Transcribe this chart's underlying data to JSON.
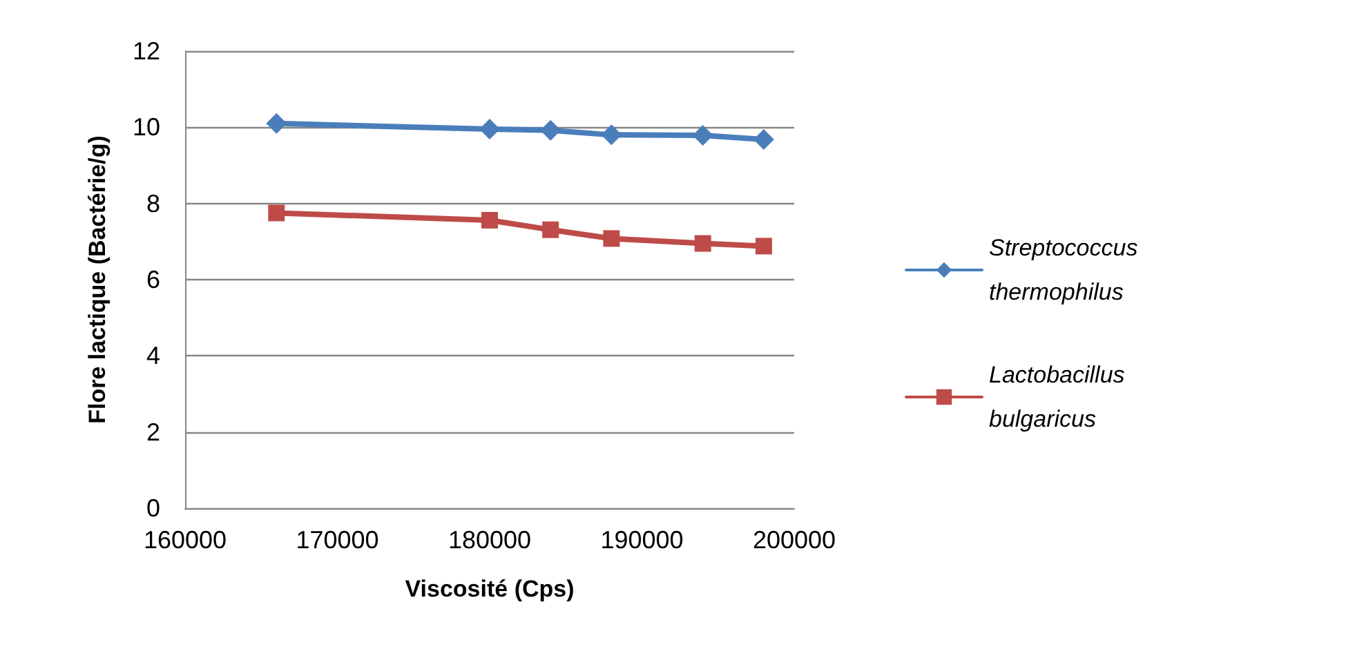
{
  "chart_data": {
    "type": "line",
    "xlabel": "Viscosité (Cps)",
    "ylabel": "Flore lactique (Bactérie/g)",
    "x": [
      166000,
      180000,
      184000,
      188000,
      194000,
      198000
    ],
    "series": [
      {
        "name": "Streptococcus thermophilus",
        "color": "#4a7ebb",
        "marker": "diamond",
        "values": [
          10.1,
          9.95,
          9.92,
          9.8,
          9.79,
          9.68
        ]
      },
      {
        "name": "Lactobacillus bulgaricus",
        "color": "#be4b48",
        "marker": "square",
        "values": [
          7.75,
          7.56,
          7.31,
          7.08,
          6.95,
          6.88
        ]
      }
    ],
    "xlim": [
      160000,
      200000
    ],
    "xticks": [
      160000,
      170000,
      180000,
      190000,
      200000
    ],
    "ylim": [
      0,
      12
    ],
    "yticks": [
      0,
      2,
      4,
      6,
      8,
      10,
      12
    ],
    "grid": "y",
    "legend": "right"
  }
}
